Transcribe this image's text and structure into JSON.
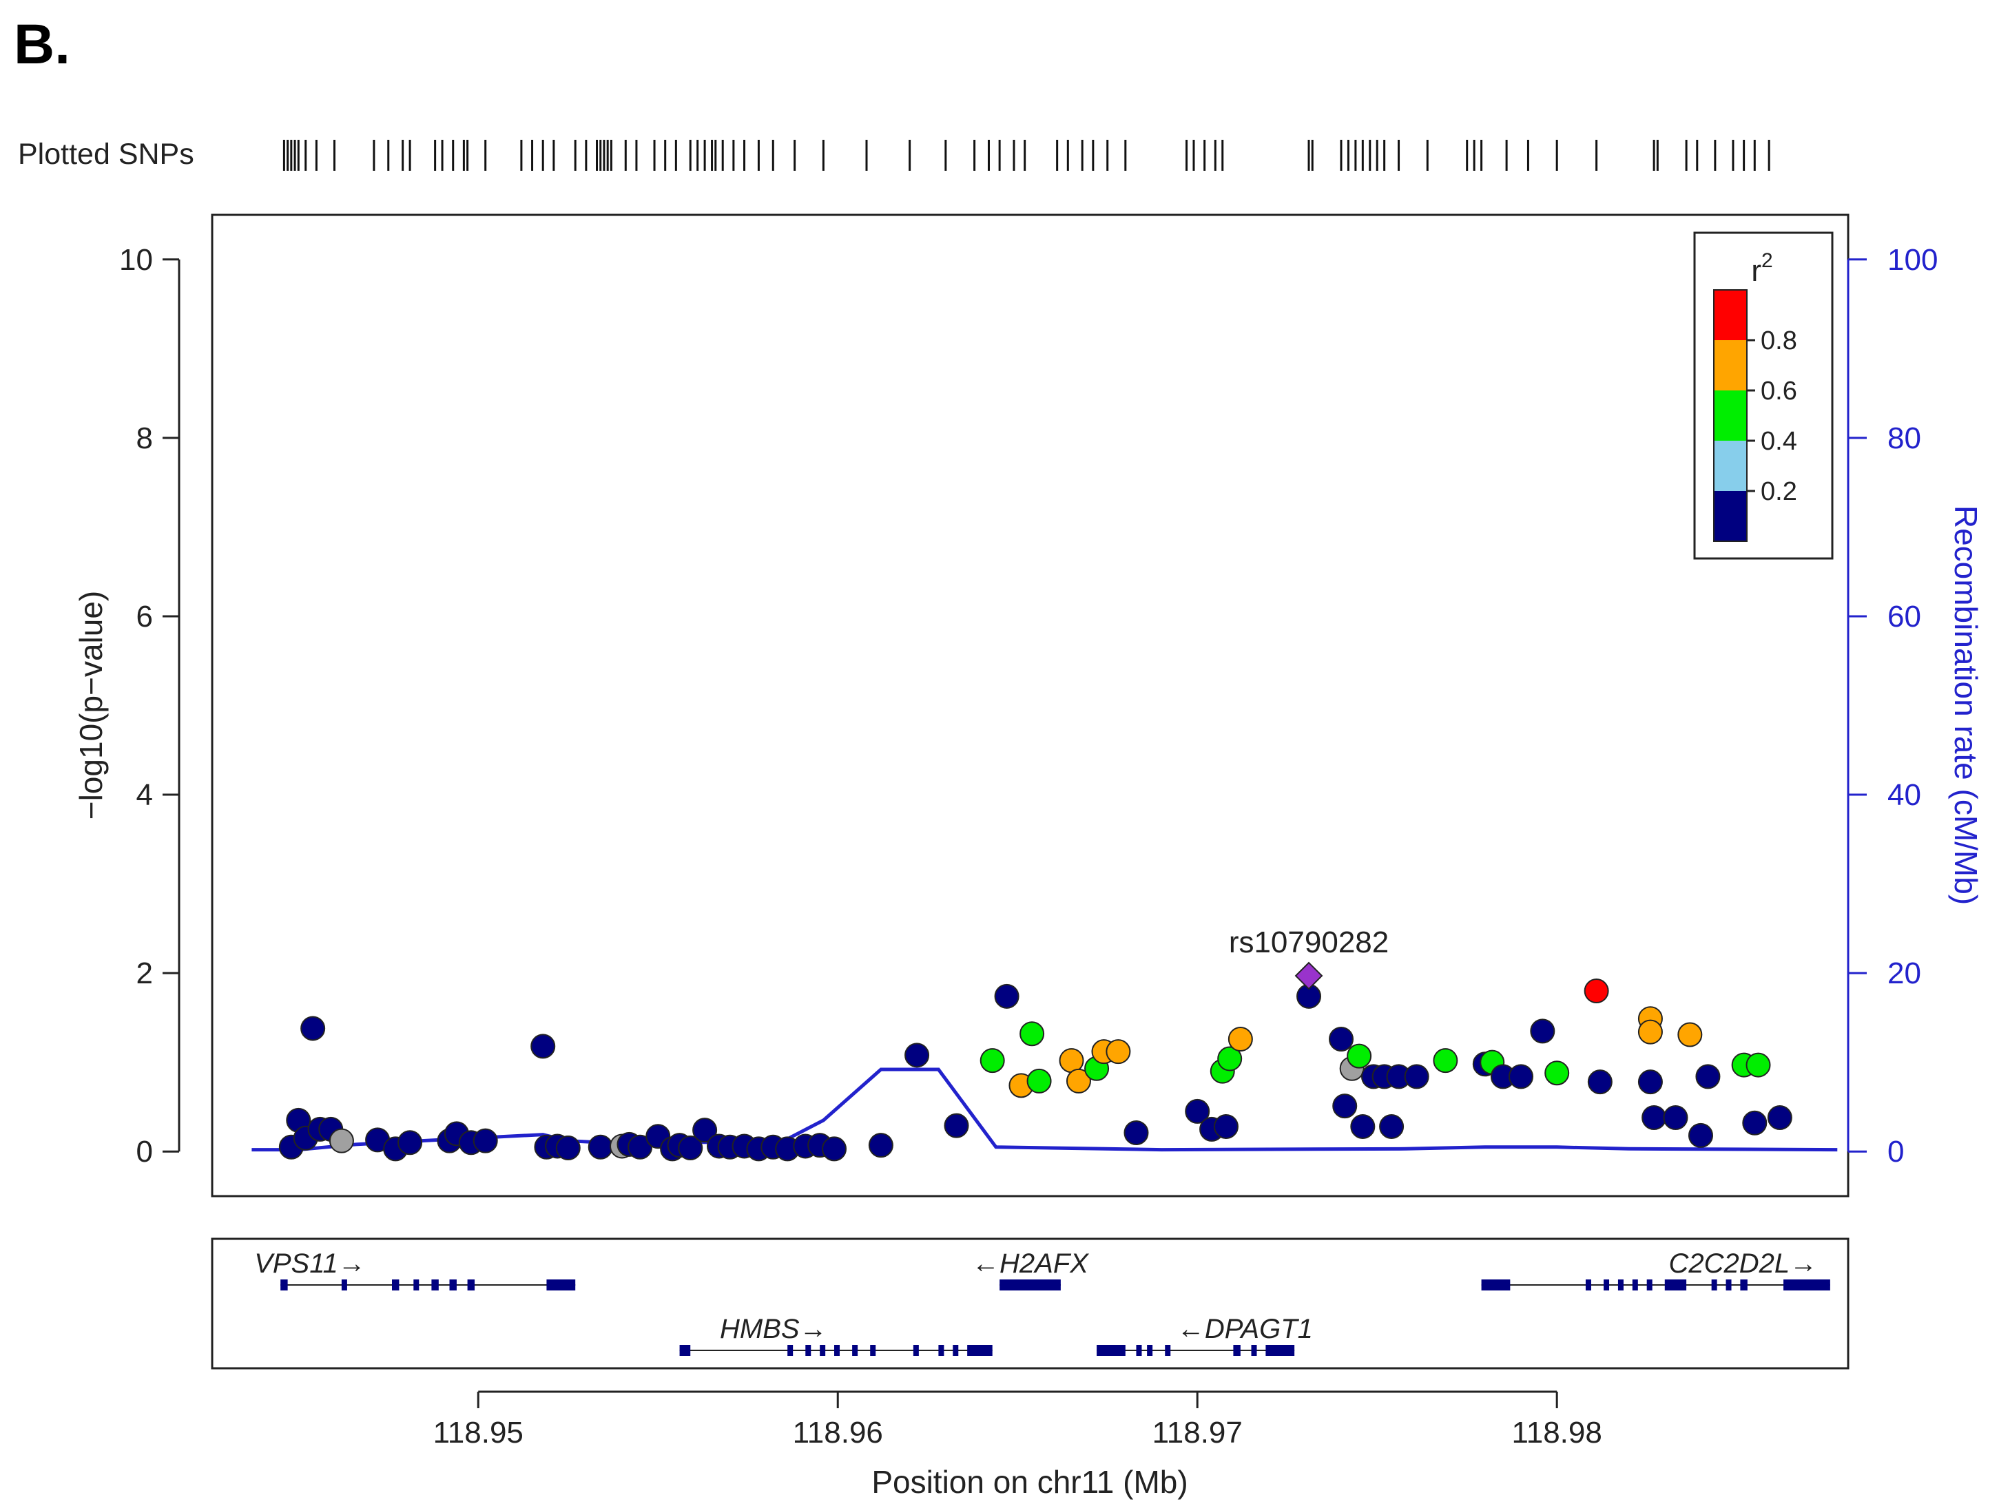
{
  "panel_label": "B.",
  "snp_track_label": "Plotted SNPs",
  "colors": {
    "ld_red": "#ff0000",
    "ld_orange": "#ffa500",
    "ld_green": "#00ee00",
    "ld_lightblue": "#87ceeb",
    "ld_navy": "#000080",
    "unknown_gray": "#a0a0a0",
    "lead_purple": "#9933cc",
    "recomb_blue": "#2222cc"
  },
  "legend": {
    "title": "r",
    "title_sup": "2",
    "bins": [
      {
        "label": "0.8",
        "color": "#ff0000"
      },
      {
        "label": "0.6",
        "color": "#ffa500"
      },
      {
        "label": "0.4",
        "color": "#00ee00"
      },
      {
        "label": "0.2",
        "color": "#87ceeb"
      },
      {
        "label": "",
        "color": "#000080"
      }
    ]
  },
  "genes": [
    {
      "name": "VPS11",
      "strand": "+",
      "start": 118.9445,
      "end": 118.9527,
      "exons": [
        [
          118.9445,
          118.9447
        ],
        [
          118.9462,
          118.9463
        ],
        [
          118.9476,
          118.9478
        ],
        [
          118.9482,
          118.9483
        ],
        [
          118.9487,
          118.9489
        ],
        [
          118.9492,
          118.9494
        ],
        [
          118.9497,
          118.9499
        ],
        [
          118.9519,
          118.9527
        ]
      ]
    },
    {
      "name": "H2AFX",
      "strand": "-",
      "start": 118.9645,
      "end": 118.9662,
      "exons": [
        [
          118.9645,
          118.9662
        ]
      ]
    },
    {
      "name": "C2C2D2L",
      "strand": "+",
      "start": 118.9779,
      "end": 118.9876,
      "exons": [
        [
          118.9779,
          118.9787
        ],
        [
          118.9808,
          118.9809
        ],
        [
          118.9813,
          118.9814
        ],
        [
          118.9817,
          118.9818
        ],
        [
          118.9821,
          118.9822
        ],
        [
          118.9825,
          118.9826
        ],
        [
          118.983,
          118.9836
        ],
        [
          118.9843,
          118.9844
        ],
        [
          118.9847,
          118.9848
        ],
        [
          118.9851,
          118.9853
        ],
        [
          118.9863,
          118.9876
        ]
      ]
    },
    {
      "name": "HMBS",
      "strand": "+",
      "start": 118.9556,
      "end": 118.9643,
      "exons": [
        [
          118.9556,
          118.9559
        ],
        [
          118.9586,
          118.9587
        ],
        [
          118.9591,
          118.9592
        ],
        [
          118.9595,
          118.9596
        ],
        [
          118.9599,
          118.96
        ],
        [
          118.9604,
          118.9605
        ],
        [
          118.9609,
          118.961
        ],
        [
          118.9621,
          118.9622
        ],
        [
          118.9628,
          118.9629
        ],
        [
          118.9632,
          118.9633
        ],
        [
          118.9636,
          118.9643
        ]
      ]
    },
    {
      "name": "DPAGT1",
      "strand": "-",
      "start": 118.9672,
      "end": 118.9727,
      "exons": [
        [
          118.9672,
          118.968
        ],
        [
          118.9683,
          118.9684
        ],
        [
          118.9686,
          118.9687
        ],
        [
          118.9691,
          118.9692
        ],
        [
          118.971,
          118.9712
        ],
        [
          118.9715,
          118.9716
        ],
        [
          118.9719,
          118.9727
        ]
      ]
    }
  ],
  "chart_data": {
    "type": "scatter",
    "xlabel": "Position on chr11 (Mb)",
    "ylabel_left": "−log10(p−value)",
    "ylabel_right": "Recombination rate (cM/Mb)",
    "xlim": [
      118.9426,
      118.9881
    ],
    "ylim_left": [
      -0.5,
      10.5
    ],
    "ylim_right": [
      -5,
      105
    ],
    "xticks": [
      118.95,
      118.96,
      118.97,
      118.98
    ],
    "xtick_labels": [
      "118.95",
      "118.96",
      "118.97",
      "118.98"
    ],
    "yticks_left": [
      0,
      2,
      4,
      6,
      8,
      10
    ],
    "ytick_labels_left": [
      "0",
      "2",
      "4",
      "6",
      "8",
      "10"
    ],
    "yticks_right": [
      0,
      20,
      40,
      60,
      80,
      100
    ],
    "ytick_labels_right": [
      "0",
      "20",
      "40",
      "60",
      "80",
      "100"
    ],
    "lead_snp": {
      "label": "rs10790282",
      "x": 118.9731,
      "y": 1.97
    },
    "points": [
      {
        "x": 118.9448,
        "y": 0.05,
        "c": "navy"
      },
      {
        "x": 118.945,
        "y": 0.35,
        "c": "navy"
      },
      {
        "x": 118.9452,
        "y": 0.15,
        "c": "navy"
      },
      {
        "x": 118.9454,
        "y": 1.38,
        "c": "navy"
      },
      {
        "x": 118.9456,
        "y": 0.25,
        "c": "navy"
      },
      {
        "x": 118.9459,
        "y": 0.25,
        "c": "navy"
      },
      {
        "x": 118.9462,
        "y": 0.12,
        "c": "gray"
      },
      {
        "x": 118.9472,
        "y": 0.13,
        "c": "navy"
      },
      {
        "x": 118.9477,
        "y": 0.03,
        "c": "navy"
      },
      {
        "x": 118.9481,
        "y": 0.1,
        "c": "navy"
      },
      {
        "x": 118.9492,
        "y": 0.12,
        "c": "navy"
      },
      {
        "x": 118.9494,
        "y": 0.2,
        "c": "navy"
      },
      {
        "x": 118.9498,
        "y": 0.1,
        "c": "navy"
      },
      {
        "x": 118.9502,
        "y": 0.12,
        "c": "navy"
      },
      {
        "x": 118.9518,
        "y": 1.18,
        "c": "navy"
      },
      {
        "x": 118.9519,
        "y": 0.05,
        "c": "navy"
      },
      {
        "x": 118.9522,
        "y": 0.06,
        "c": "navy"
      },
      {
        "x": 118.9525,
        "y": 0.04,
        "c": "navy"
      },
      {
        "x": 118.9534,
        "y": 0.05,
        "c": "navy"
      },
      {
        "x": 118.954,
        "y": 0.06,
        "c": "gray"
      },
      {
        "x": 118.9542,
        "y": 0.08,
        "c": "navy"
      },
      {
        "x": 118.9545,
        "y": 0.05,
        "c": "navy"
      },
      {
        "x": 118.955,
        "y": 0.17,
        "c": "navy"
      },
      {
        "x": 118.9554,
        "y": 0.03,
        "c": "navy"
      },
      {
        "x": 118.9556,
        "y": 0.07,
        "c": "navy"
      },
      {
        "x": 118.9559,
        "y": 0.04,
        "c": "navy"
      },
      {
        "x": 118.9563,
        "y": 0.24,
        "c": "navy"
      },
      {
        "x": 118.9567,
        "y": 0.06,
        "c": "navy"
      },
      {
        "x": 118.957,
        "y": 0.05,
        "c": "navy"
      },
      {
        "x": 118.9574,
        "y": 0.06,
        "c": "navy"
      },
      {
        "x": 118.9578,
        "y": 0.03,
        "c": "navy"
      },
      {
        "x": 118.9582,
        "y": 0.05,
        "c": "navy"
      },
      {
        "x": 118.9586,
        "y": 0.03,
        "c": "navy"
      },
      {
        "x": 118.9591,
        "y": 0.06,
        "c": "navy"
      },
      {
        "x": 118.9595,
        "y": 0.07,
        "c": "navy"
      },
      {
        "x": 118.9599,
        "y": 0.03,
        "c": "navy"
      },
      {
        "x": 118.9612,
        "y": 0.07,
        "c": "navy"
      },
      {
        "x": 118.9622,
        "y": 1.08,
        "c": "navy"
      },
      {
        "x": 118.9633,
        "y": 0.29,
        "c": "navy"
      },
      {
        "x": 118.9643,
        "y": 1.02,
        "c": "green"
      },
      {
        "x": 118.9647,
        "y": 1.74,
        "c": "navy"
      },
      {
        "x": 118.9651,
        "y": 0.74,
        "c": "orange"
      },
      {
        "x": 118.9654,
        "y": 1.32,
        "c": "green"
      },
      {
        "x": 118.9656,
        "y": 0.79,
        "c": "green"
      },
      {
        "x": 118.9665,
        "y": 1.02,
        "c": "orange"
      },
      {
        "x": 118.9667,
        "y": 0.79,
        "c": "orange"
      },
      {
        "x": 118.9672,
        "y": 0.93,
        "c": "green"
      },
      {
        "x": 118.9674,
        "y": 1.12,
        "c": "orange"
      },
      {
        "x": 118.9678,
        "y": 1.12,
        "c": "orange"
      },
      {
        "x": 118.9683,
        "y": 0.21,
        "c": "navy"
      },
      {
        "x": 118.97,
        "y": 0.45,
        "c": "navy"
      },
      {
        "x": 118.9704,
        "y": 0.25,
        "c": "navy"
      },
      {
        "x": 118.9707,
        "y": 0.9,
        "c": "green"
      },
      {
        "x": 118.9708,
        "y": 0.28,
        "c": "navy"
      },
      {
        "x": 118.9709,
        "y": 1.04,
        "c": "green"
      },
      {
        "x": 118.9712,
        "y": 1.26,
        "c": "orange"
      },
      {
        "x": 118.9731,
        "y": 1.74,
        "c": "navy"
      },
      {
        "x": 118.974,
        "y": 1.26,
        "c": "navy"
      },
      {
        "x": 118.9741,
        "y": 0.51,
        "c": "navy"
      },
      {
        "x": 118.9743,
        "y": 0.93,
        "c": "gray"
      },
      {
        "x": 118.9745,
        "y": 1.07,
        "c": "green"
      },
      {
        "x": 118.9746,
        "y": 0.28,
        "c": "navy"
      },
      {
        "x": 118.9749,
        "y": 0.84,
        "c": "navy"
      },
      {
        "x": 118.9752,
        "y": 0.84,
        "c": "navy"
      },
      {
        "x": 118.9754,
        "y": 0.28,
        "c": "navy"
      },
      {
        "x": 118.9756,
        "y": 0.84,
        "c": "navy"
      },
      {
        "x": 118.9761,
        "y": 0.84,
        "c": "navy"
      },
      {
        "x": 118.9769,
        "y": 1.02,
        "c": "green"
      },
      {
        "x": 118.978,
        "y": 0.98,
        "c": "navy"
      },
      {
        "x": 118.9782,
        "y": 1.0,
        "c": "green"
      },
      {
        "x": 118.9785,
        "y": 0.84,
        "c": "navy"
      },
      {
        "x": 118.9796,
        "y": 1.35,
        "c": "navy"
      },
      {
        "x": 118.979,
        "y": 0.84,
        "c": "navy"
      },
      {
        "x": 118.98,
        "y": 0.88,
        "c": "green"
      },
      {
        "x": 118.9811,
        "y": 1.8,
        "c": "red"
      },
      {
        "x": 118.9812,
        "y": 0.78,
        "c": "navy"
      },
      {
        "x": 118.9826,
        "y": 1.49,
        "c": "orange"
      },
      {
        "x": 118.9826,
        "y": 1.34,
        "c": "orange"
      },
      {
        "x": 118.9826,
        "y": 0.78,
        "c": "navy"
      },
      {
        "x": 118.9827,
        "y": 0.38,
        "c": "navy"
      },
      {
        "x": 118.9833,
        "y": 0.38,
        "c": "navy"
      },
      {
        "x": 118.9837,
        "y": 1.31,
        "c": "orange"
      },
      {
        "x": 118.984,
        "y": 0.18,
        "c": "navy"
      },
      {
        "x": 118.9842,
        "y": 0.84,
        "c": "navy"
      },
      {
        "x": 118.9852,
        "y": 0.97,
        "c": "green"
      },
      {
        "x": 118.9855,
        "y": 0.32,
        "c": "navy"
      },
      {
        "x": 118.9856,
        "y": 0.97,
        "c": "green"
      },
      {
        "x": 118.9862,
        "y": 0.38,
        "c": "navy"
      }
    ],
    "recombination": [
      [
        118.9437,
        0.2
      ],
      [
        118.945,
        0.2
      ],
      [
        118.9466,
        0.8
      ],
      [
        118.9484,
        1.2
      ],
      [
        118.9518,
        1.9
      ],
      [
        118.9525,
        1.2
      ],
      [
        118.9535,
        1.0
      ],
      [
        118.9545,
        1.2
      ],
      [
        118.9568,
        1.0
      ],
      [
        118.9585,
        1.2
      ],
      [
        118.9596,
        3.5
      ],
      [
        118.9612,
        9.2
      ],
      [
        118.9628,
        9.2
      ],
      [
        118.9644,
        0.5
      ],
      [
        118.969,
        0.2
      ],
      [
        118.9758,
        0.3
      ],
      [
        118.978,
        0.5
      ],
      [
        118.98,
        0.5
      ],
      [
        118.982,
        0.3
      ],
      [
        118.9878,
        0.2
      ]
    ],
    "snp_positions": [
      118.9446,
      118.9447,
      118.9448,
      118.9449,
      118.945,
      118.9452,
      118.9455,
      118.946,
      118.9471,
      118.9475,
      118.9479,
      118.9481,
      118.9488,
      118.949,
      118.9493,
      118.9496,
      118.9497,
      118.9502,
      118.9512,
      118.9515,
      118.9518,
      118.9521,
      118.9527,
      118.953,
      118.9533,
      118.9534,
      118.9535,
      118.9536,
      118.9537,
      118.9541,
      118.9544,
      118.9549,
      118.9552,
      118.9555,
      118.9559,
      118.9561,
      118.9563,
      118.9565,
      118.9566,
      118.9568,
      118.9571,
      118.9574,
      118.9578,
      118.9582,
      118.9588,
      118.9596,
      118.9608,
      118.962,
      118.963,
      118.9638,
      118.9642,
      118.9645,
      118.9649,
      118.9652,
      118.9661,
      118.9664,
      118.9668,
      118.9671,
      118.9675,
      118.968,
      118.9697,
      118.9699,
      118.9702,
      118.9705,
      118.9707,
      118.9731,
      118.9732,
      118.974,
      118.9742,
      118.9744,
      118.9746,
      118.9748,
      118.975,
      118.9752,
      118.9756,
      118.9764,
      118.9775,
      118.9777,
      118.9779,
      118.9786,
      118.9792,
      118.98,
      118.9811,
      118.9827,
      118.9828,
      118.9836,
      118.9839,
      118.9844,
      118.9849,
      118.9852,
      118.9855,
      118.9859
    ]
  }
}
